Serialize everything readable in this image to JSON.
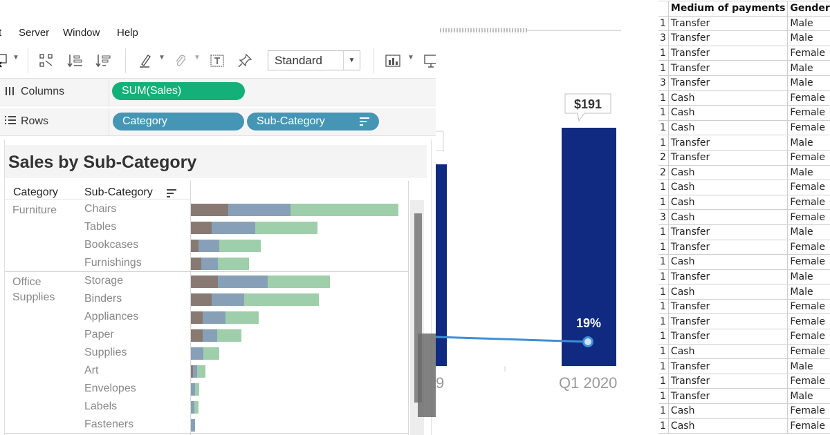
{
  "menu": [
    "Server",
    "Window",
    "Help"
  ],
  "menu_partial": "t",
  "toolbar": {
    "view_select": "Standard"
  },
  "shelves": {
    "columns_label": "Columns",
    "rows_label": "Rows",
    "columns_pills": [
      "SUM(Sales)"
    ],
    "rows_pills": [
      "Category",
      "Sub-Category"
    ]
  },
  "viz": {
    "title": "Sales by Sub-Category",
    "header_category": "Category",
    "header_subcategory": "Sub-Category",
    "segment_colors": [
      "#887a72",
      "#87a0b8",
      "#9fceaa"
    ],
    "groups": [
      {
        "category": "Furniture",
        "rows": [
          {
            "sub": "Chairs",
            "segments": [
              0.18,
              0.3,
              0.52
            ]
          },
          {
            "sub": "Tables",
            "segments": [
              0.1,
              0.21,
              0.3
            ]
          },
          {
            "sub": "Bookcases",
            "segments": [
              0.035,
              0.1,
              0.2
            ]
          },
          {
            "sub": "Furnishings",
            "segments": [
              0.05,
              0.08,
              0.15
            ]
          }
        ]
      },
      {
        "category": "Office Supplies",
        "rows": [
          {
            "sub": "Storage",
            "segments": [
              0.13,
              0.24,
              0.3
            ]
          },
          {
            "sub": "Binders",
            "segments": [
              0.1,
              0.155,
              0.36
            ]
          },
          {
            "sub": "Appliances",
            "segments": [
              0.055,
              0.11,
              0.16
            ]
          },
          {
            "sub": "Paper",
            "segments": [
              0.055,
              0.07,
              0.115
            ]
          },
          {
            "sub": "Supplies",
            "segments": [
              0.0,
              0.06,
              0.075
            ]
          },
          {
            "sub": "Art",
            "segments": [
              0.01,
              0.02,
              0.04
            ]
          },
          {
            "sub": "Envelopes",
            "segments": [
              0.0,
              0.02,
              0.02
            ]
          },
          {
            "sub": "Labels",
            "segments": [
              0.0,
              0.015,
              0.02
            ]
          },
          {
            "sub": "Fasteners",
            "segments": [
              0.0,
              0.02,
              0.0
            ]
          }
        ]
      }
    ]
  },
  "chart_fragment": {
    "bar_value_label": "$191",
    "line_value_label": "19%",
    "x_label_left": "9",
    "x_label_right": "Q1 2020",
    "bar_color": "#0f2a80",
    "line_color": "#3d8fd6"
  },
  "sheet": {
    "headers": [
      "",
      "Medium of payments",
      "Gender"
    ],
    "rows": [
      [
        "1",
        "Transfer",
        "Male"
      ],
      [
        "3",
        "Transfer",
        "Male"
      ],
      [
        "1",
        "Transfer",
        "Female"
      ],
      [
        "1",
        "Transfer",
        "Male"
      ],
      [
        "3",
        "Transfer",
        "Male"
      ],
      [
        "1",
        "Cash",
        "Female"
      ],
      [
        "1",
        "Cash",
        "Female"
      ],
      [
        "1",
        "Cash",
        "Female"
      ],
      [
        "1",
        "Transfer",
        "Male"
      ],
      [
        "2",
        "Transfer",
        "Female"
      ],
      [
        "2",
        "Cash",
        "Male"
      ],
      [
        "1",
        "Cash",
        "Female"
      ],
      [
        "1",
        "Cash",
        "Female"
      ],
      [
        "3",
        "Cash",
        "Female"
      ],
      [
        "1",
        "Transfer",
        "Male"
      ],
      [
        "1",
        "Transfer",
        "Female"
      ],
      [
        "1",
        "Cash",
        "Female"
      ],
      [
        "1",
        "Transfer",
        "Male"
      ],
      [
        "1",
        "Cash",
        "Male"
      ],
      [
        "1",
        "Transfer",
        "Female"
      ],
      [
        "1",
        "Transfer",
        "Female"
      ],
      [
        "1",
        "Transfer",
        "Female"
      ],
      [
        "1",
        "Cash",
        "Female"
      ],
      [
        "1",
        "Transfer",
        "Male"
      ],
      [
        "1",
        "Transfer",
        "Female"
      ],
      [
        "1",
        "Transfer",
        "Male"
      ],
      [
        "1",
        "Cash",
        "Female"
      ],
      [
        "1",
        "Cash",
        "Female"
      ]
    ]
  }
}
